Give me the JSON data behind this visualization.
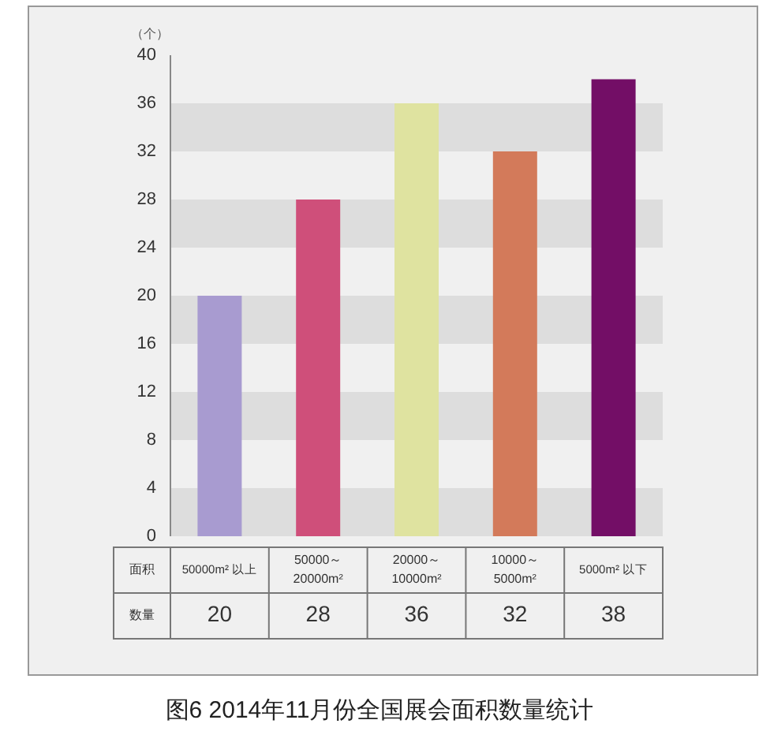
{
  "chart_data": {
    "type": "bar",
    "title": "图6 2014年11月份全国展会面积数量统计",
    "ylabel": "（个）",
    "xlabel": "面积",
    "annotations": [
      "数量"
    ],
    "categories": [
      "50000m² 以上",
      "50000～20000m²",
      "20000～10000m²",
      "10000～5000m²",
      "5000m² 以下"
    ],
    "values": [
      20,
      28,
      36,
      32,
      38
    ],
    "colors": [
      "#a89bd0",
      "#cf4f7a",
      "#dfe3a0",
      "#d37a5a",
      "#730e66"
    ],
    "ylim": [
      0,
      40
    ],
    "yticks": [
      0,
      4,
      8,
      12,
      16,
      20,
      24,
      28,
      32,
      36,
      40
    ],
    "bands": [
      {
        "axis": "y",
        "from": 0,
        "to": 4,
        "color": "#dddddd"
      },
      {
        "axis": "y",
        "from": 8,
        "to": 12,
        "color": "#dddddd"
      },
      {
        "axis": "y",
        "from": 16,
        "to": 20,
        "color": "#dddddd"
      },
      {
        "axis": "y",
        "from": 24,
        "to": 28,
        "color": "#dddddd"
      },
      {
        "axis": "y",
        "from": 32,
        "to": 36,
        "color": "#dddddd"
      }
    ],
    "data_labels": true,
    "grid": false
  }
}
